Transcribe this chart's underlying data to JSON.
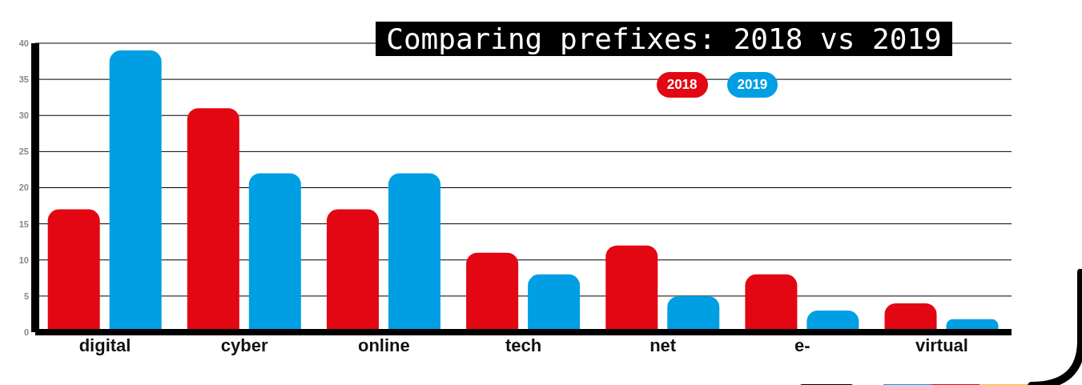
{
  "chart_data": {
    "type": "bar",
    "title": "Comparing prefixes: 2018 vs 2019",
    "categories": [
      "digital",
      "cyber",
      "online",
      "tech",
      "net",
      "e-",
      "virtual"
    ],
    "series": [
      {
        "name": "2018",
        "color": "#e30613",
        "values": [
          17,
          31,
          17,
          11,
          12,
          8,
          4
        ]
      },
      {
        "name": "2019",
        "color": "#009fe3",
        "values": [
          39,
          22,
          22,
          8,
          5,
          3,
          1.8
        ]
      }
    ],
    "ylim": [
      0,
      40
    ],
    "yticks": [
      0,
      5,
      10,
      15,
      20,
      25,
      30,
      35,
      40
    ],
    "grid": "y",
    "legend": "top"
  }
}
